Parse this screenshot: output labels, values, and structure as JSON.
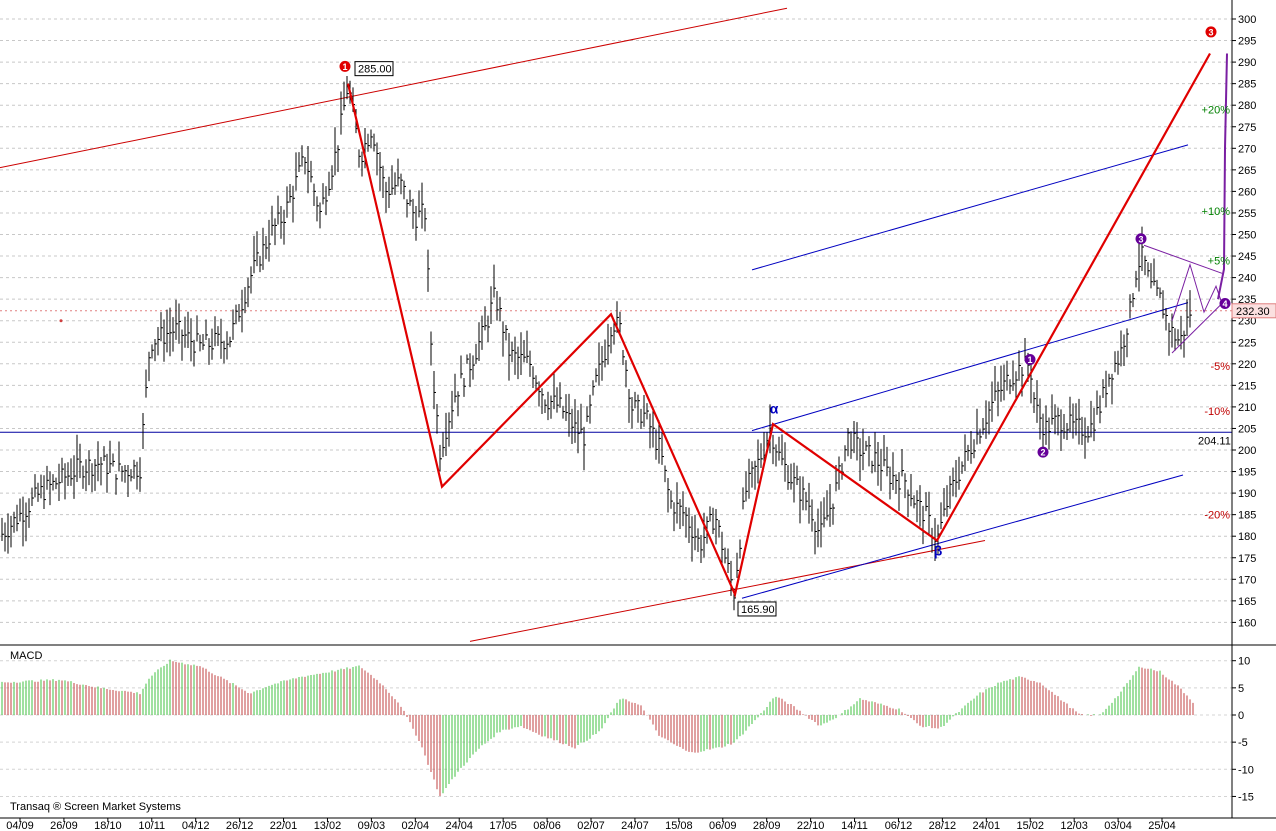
{
  "chart_data": {
    "type": "ohlc",
    "price_axis": {
      "ylim": [
        155,
        302
      ],
      "ticks": [
        160,
        165,
        170,
        175,
        180,
        185,
        190,
        195,
        200,
        205,
        210,
        215,
        220,
        225,
        230,
        235,
        240,
        245,
        250,
        255,
        260,
        265,
        270,
        275,
        280,
        285,
        290,
        295,
        300
      ]
    },
    "date_labels": [
      "04/09",
      "26/09",
      "18/10",
      "10/11",
      "04/12",
      "26/12",
      "22/01",
      "13/02",
      "09/03",
      "02/04",
      "24/04",
      "17/05",
      "08/06",
      "02/07",
      "24/07",
      "15/08",
      "06/09",
      "28/09",
      "22/10",
      "14/11",
      "06/12",
      "28/12",
      "24/01",
      "15/02",
      "12/03",
      "03/04",
      "25/04"
    ],
    "price_path": [
      [
        0,
        180
      ],
      [
        20,
        185
      ],
      [
        40,
        190
      ],
      [
        60,
        193
      ],
      [
        80,
        196
      ],
      [
        100,
        197
      ],
      [
        120,
        195
      ],
      [
        140,
        196
      ],
      [
        150,
        225
      ],
      [
        175,
        228
      ],
      [
        200,
        224
      ],
      [
        230,
        226
      ],
      [
        250,
        240
      ],
      [
        270,
        250
      ],
      [
        285,
        255
      ],
      [
        305,
        268
      ],
      [
        320,
        255
      ],
      [
        337,
        270
      ],
      [
        348,
        285
      ],
      [
        360,
        268
      ],
      [
        372,
        275
      ],
      [
        385,
        260
      ],
      [
        400,
        262
      ],
      [
        415,
        254
      ],
      [
        425,
        255
      ],
      [
        432,
        220
      ],
      [
        440,
        200
      ],
      [
        455,
        213
      ],
      [
        470,
        220
      ],
      [
        485,
        228
      ],
      [
        495,
        236
      ],
      [
        510,
        222
      ],
      [
        530,
        220
      ],
      [
        545,
        212
      ],
      [
        560,
        210
      ],
      [
        575,
        205
      ],
      [
        585,
        203
      ],
      [
        595,
        215
      ],
      [
        605,
        223
      ],
      [
        612,
        230
      ],
      [
        620,
        228
      ],
      [
        632,
        210
      ],
      [
        645,
        208
      ],
      [
        660,
        200
      ],
      [
        670,
        188
      ],
      [
        685,
        185
      ],
      [
        700,
        178
      ],
      [
        715,
        185
      ],
      [
        725,
        175
      ],
      [
        734,
        167
      ],
      [
        745,
        190
      ],
      [
        760,
        198
      ],
      [
        770,
        205
      ],
      [
        780,
        198
      ],
      [
        795,
        192
      ],
      [
        810,
        187
      ],
      [
        820,
        180
      ],
      [
        835,
        190
      ],
      [
        848,
        203
      ],
      [
        860,
        200
      ],
      [
        875,
        198
      ],
      [
        890,
        194
      ],
      [
        905,
        193
      ],
      [
        915,
        188
      ],
      [
        925,
        185
      ],
      [
        937,
        179
      ],
      [
        950,
        190
      ],
      [
        965,
        198
      ],
      [
        980,
        205
      ],
      [
        995,
        212
      ],
      [
        1010,
        217
      ],
      [
        1020,
        219
      ],
      [
        1030,
        220
      ],
      [
        1035,
        210
      ],
      [
        1045,
        205
      ],
      [
        1060,
        207
      ],
      [
        1075,
        205
      ],
      [
        1090,
        205
      ],
      [
        1100,
        210
      ],
      [
        1110,
        218
      ],
      [
        1120,
        222
      ],
      [
        1130,
        232
      ],
      [
        1137,
        243
      ],
      [
        1143,
        245
      ],
      [
        1150,
        238
      ],
      [
        1160,
        235
      ],
      [
        1170,
        228
      ],
      [
        1180,
        225
      ],
      [
        1190,
        232
      ]
    ],
    "levels": [
      {
        "label": "285.00",
        "value": 285.0
      },
      {
        "label": "165.90",
        "value": 165.9
      },
      {
        "label": "204.11",
        "value": 204.11
      },
      {
        "label": "232.30",
        "value": 232.3
      }
    ],
    "percent_labels": [
      {
        "label": "+20%",
        "value": 279,
        "color": "#008000"
      },
      {
        "label": "+10%",
        "value": 255.5,
        "color": "#008000"
      },
      {
        "label": "+5%",
        "value": 244,
        "color": "#008000"
      },
      {
        "label": "-5%",
        "value": 219.5,
        "color": "#c00000"
      },
      {
        "label": "-10%",
        "value": 209,
        "color": "#c00000"
      },
      {
        "label": "-20%",
        "value": 185,
        "color": "#c00000"
      }
    ],
    "wave_markers": [
      {
        "label": "1",
        "x": 345,
        "price": 289,
        "color": "#e00000"
      },
      {
        "label": "3",
        "x": 1211,
        "price": 297,
        "color": "#e00000"
      },
      {
        "label": "1",
        "x": 1030,
        "price": 221,
        "color": "#660099"
      },
      {
        "label": "2",
        "x": 1043,
        "price": 199.5,
        "color": "#660099"
      },
      {
        "label": "3",
        "x": 1141,
        "price": 249,
        "color": "#660099"
      },
      {
        "label": "4",
        "x": 1225,
        "price": 234,
        "color": "#660099"
      }
    ],
    "greek_labels": [
      {
        "label": "α",
        "x": 774,
        "price": 208.5
      },
      {
        "label": "β",
        "x": 938,
        "price": 175.5
      }
    ],
    "macd": {
      "label": "MACD",
      "ylim": [
        -17,
        12
      ],
      "ticks": [
        -15,
        -10,
        -5,
        0,
        5,
        10
      ]
    },
    "credit": "Transaq ® Screen Market Systems",
    "colors": {
      "wave_line": "#e00000",
      "channel_red": "#cc0000",
      "channel_blue": "#0000c0",
      "purple": "#7a1fa2",
      "macd_up": "#40c040",
      "macd_down": "#c04040"
    }
  }
}
